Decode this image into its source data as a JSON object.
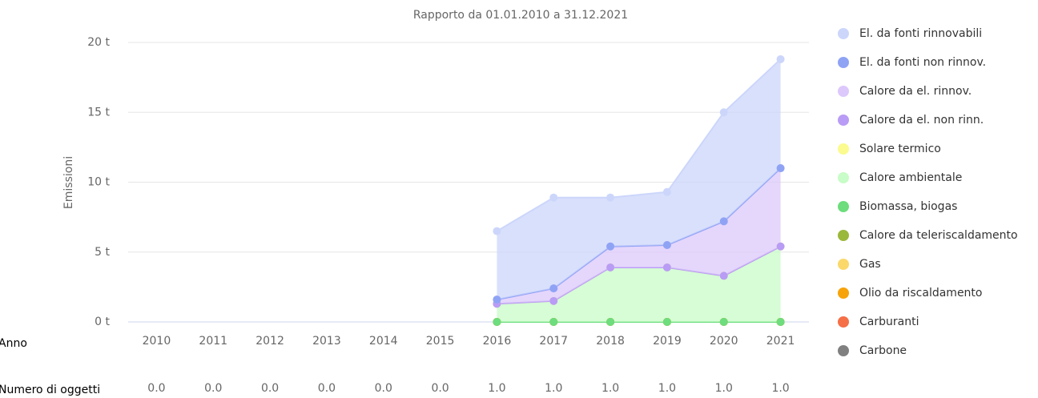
{
  "chart_data": {
    "type": "stacked_area",
    "title": "Rapporto da 01.01.2010 a 31.12.2021",
    "y_label": "Emissioni",
    "x_row_label": "Anno",
    "categories": [
      "2010",
      "2011",
      "2012",
      "2013",
      "2014",
      "2015",
      "2016",
      "2017",
      "2018",
      "2019",
      "2020",
      "2021"
    ],
    "ylim": [
      0,
      20
    ],
    "yticks": [
      {
        "value": 0,
        "label": "0 t"
      },
      {
        "value": 5,
        "label": "5 t"
      },
      {
        "value": 10,
        "label": "10 t"
      },
      {
        "value": 15,
        "label": "15 t"
      },
      {
        "value": 20,
        "label": "20 t"
      }
    ],
    "grid": true,
    "legend": "right",
    "series": [
      {
        "name": "Carbone",
        "color": "#808080",
        "values": [
          null,
          null,
          null,
          null,
          null,
          null,
          0,
          0,
          0,
          0,
          0,
          0
        ]
      },
      {
        "name": "Carburanti",
        "color": "#f56f47",
        "values": [
          null,
          null,
          null,
          null,
          null,
          null,
          0,
          0,
          0,
          0,
          0,
          0
        ]
      },
      {
        "name": "Olio da riscaldamento",
        "color": "#f7a30a",
        "values": [
          null,
          null,
          null,
          null,
          null,
          null,
          0,
          0,
          0,
          0,
          0,
          0
        ]
      },
      {
        "name": "Gas",
        "color": "#fbd86a",
        "values": [
          null,
          null,
          null,
          null,
          null,
          null,
          0,
          0,
          0,
          0,
          0,
          0
        ]
      },
      {
        "name": "Calore da teleriscaldamento",
        "color": "#9ab83a",
        "values": [
          null,
          null,
          null,
          null,
          null,
          null,
          0,
          0,
          0,
          0,
          0,
          0
        ]
      },
      {
        "name": "Biomassa, biogas",
        "color": "#6ddd7d",
        "values": [
          null,
          null,
          null,
          null,
          null,
          null,
          0,
          0,
          0,
          0,
          0,
          0
        ]
      },
      {
        "name": "Calore ambientale",
        "color": "#c8fcc8",
        "values": [
          null,
          null,
          null,
          null,
          null,
          null,
          1.3,
          1.5,
          3.9,
          3.9,
          3.3,
          5.4
        ]
      },
      {
        "name": "Solare termico",
        "color": "#fbfb8f",
        "values": [
          null,
          null,
          null,
          null,
          null,
          null,
          0,
          0,
          0,
          0,
          0,
          0
        ]
      },
      {
        "name": "Calore da el. non rinn.",
        "color": "#b99cf5",
        "values": [
          null,
          null,
          null,
          null,
          null,
          null,
          0,
          0,
          0,
          0,
          0,
          0
        ]
      },
      {
        "name": "Calore da el. rinnov.",
        "color": "#dcc8fb",
        "values": [
          null,
          null,
          null,
          null,
          null,
          null,
          0.3,
          0.9,
          1.5,
          1.6,
          3.9,
          5.6
        ]
      },
      {
        "name": "El. da fonti non rinnov.",
        "color": "#8fa3f5",
        "values": [
          null,
          null,
          null,
          null,
          null,
          null,
          0,
          0,
          0,
          0,
          0,
          0
        ]
      },
      {
        "name": "El. da fonti rinnovabili",
        "color": "#ccd6fb",
        "values": [
          null,
          null,
          null,
          null,
          null,
          null,
          4.9,
          6.5,
          3.5,
          3.8,
          7.8,
          7.8
        ]
      }
    ],
    "objects": {
      "label": "Numero di oggetti",
      "values": [
        "0.0",
        "0.0",
        "0.0",
        "0.0",
        "0.0",
        "0.0",
        "1.0",
        "1.0",
        "1.0",
        "1.0",
        "1.0",
        "1.0"
      ]
    }
  }
}
